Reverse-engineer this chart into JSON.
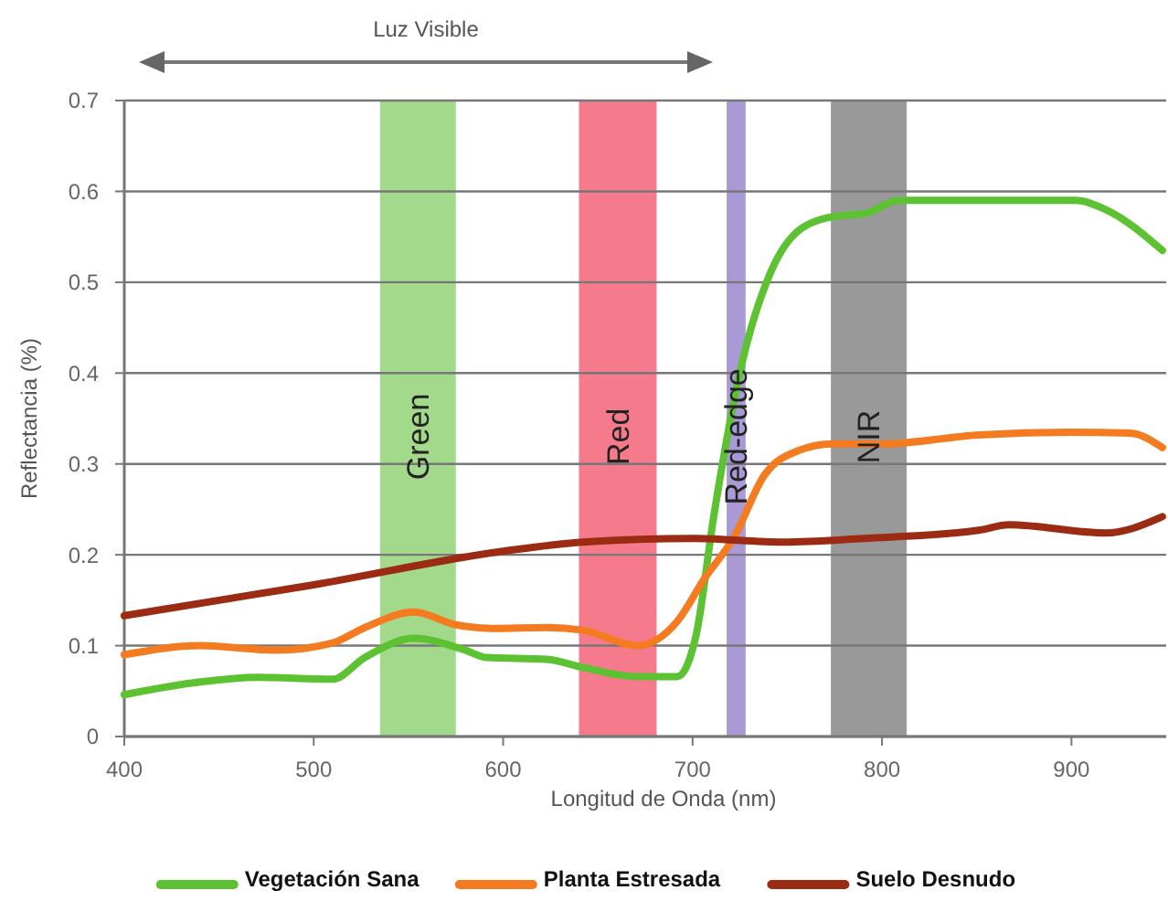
{
  "chart_data": {
    "type": "line",
    "xlabel": "Longitud de Onda (nm)",
    "ylabel": "Reflectancia (%)",
    "annotations": [
      "Luz Visible"
    ],
    "xlim": [
      400,
      950
    ],
    "ylim": [
      0,
      0.7
    ],
    "xticks": [
      400,
      500,
      600,
      700,
      800,
      900
    ],
    "yticks": [
      0,
      0.1,
      0.2,
      0.3,
      0.4,
      0.5,
      0.6,
      0.7
    ],
    "grid": "y",
    "legend": "bottom",
    "line_style": "solid",
    "bands": [
      {
        "axis": "x",
        "from": 535,
        "to": 575,
        "label": "Green",
        "color": "#a3d98a"
      },
      {
        "axis": "x",
        "from": 640,
        "to": 681,
        "label": "Red",
        "color": "#f47a8c"
      },
      {
        "axis": "x",
        "from": 718,
        "to": 728,
        "label": "Red-edge",
        "color": "#a99ad6"
      },
      {
        "axis": "x",
        "from": 773,
        "to": 813,
        "label": "NIR",
        "color": "#999999"
      }
    ],
    "series": [
      {
        "name": "Vegetación Sana",
        "color": "#5dc232",
        "x": [
          400,
          440,
          470,
          510,
          527,
          553,
          580,
          591,
          623,
          642,
          670,
          692,
          702,
          711,
          726,
          741,
          758,
          777,
          790,
          809,
          902,
          918,
          948
        ],
        "values": [
          0.046,
          0.06,
          0.065,
          0.063,
          0.087,
          0.108,
          0.095,
          0.087,
          0.085,
          0.076,
          0.066,
          0.066,
          0.113,
          0.24,
          0.41,
          0.51,
          0.56,
          0.573,
          0.575,
          0.59,
          0.59,
          0.58,
          0.535
        ]
      },
      {
        "name": "Planta Estresada",
        "color": "#f47b20",
        "x": [
          400,
          440,
          480,
          510,
          527,
          553,
          575,
          594,
          623,
          642,
          671,
          692,
          706,
          722,
          738,
          755,
          774,
          800,
          851,
          899,
          931,
          948
        ],
        "values": [
          0.09,
          0.1,
          0.095,
          0.103,
          0.12,
          0.137,
          0.123,
          0.119,
          0.12,
          0.117,
          0.1,
          0.127,
          0.173,
          0.22,
          0.288,
          0.314,
          0.322,
          0.322,
          0.332,
          0.335,
          0.334,
          0.318
        ]
      },
      {
        "name": "Suelo Desnudo",
        "color": "#9b2b12",
        "x": [
          400,
          500,
          600,
          642,
          700,
          748,
          790,
          851,
          867,
          918,
          948
        ],
        "values": [
          0.133,
          0.167,
          0.204,
          0.214,
          0.218,
          0.214,
          0.218,
          0.227,
          0.233,
          0.224,
          0.242
        ]
      }
    ]
  }
}
